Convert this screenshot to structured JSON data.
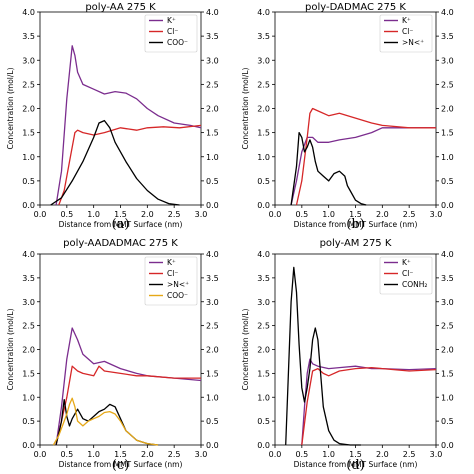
{
  "chart_data": [
    {
      "type": "line",
      "title": "poly-AA 275 K",
      "caption": "(a)",
      "xlabel": "Distance from MMT Surface (nm)",
      "ylabel": "Concentration (mol/L)",
      "xlim": [
        0.0,
        3.0
      ],
      "ylim": [
        0.0,
        4.0
      ],
      "x_ticks": [
        "0.0",
        "0.5",
        "1.0",
        "1.5",
        "2.0",
        "2.5",
        "3.0"
      ],
      "y_ticks": [
        "0.0",
        "0.5",
        "1.0",
        "1.5",
        "2.0",
        "2.5",
        "3.0",
        "3.5",
        "4.0"
      ],
      "legend_position": "top-right",
      "series": [
        {
          "name": "K⁺",
          "color": "#7b2d8e",
          "x": [
            0.3,
            0.4,
            0.5,
            0.6,
            0.65,
            0.7,
            0.8,
            1.0,
            1.2,
            1.4,
            1.6,
            1.8,
            2.0,
            2.2,
            2.5,
            2.8,
            3.0
          ],
          "y": [
            0.0,
            0.7,
            2.2,
            3.3,
            3.1,
            2.75,
            2.5,
            2.4,
            2.3,
            2.35,
            2.32,
            2.2,
            2.0,
            1.85,
            1.7,
            1.65,
            1.6
          ]
        },
        {
          "name": "Cl⁻",
          "color": "#d62728",
          "x": [
            0.35,
            0.45,
            0.55,
            0.65,
            0.7,
            0.8,
            1.0,
            1.2,
            1.5,
            1.8,
            2.0,
            2.3,
            2.6,
            3.0
          ],
          "y": [
            0.0,
            0.3,
            0.9,
            1.5,
            1.55,
            1.5,
            1.45,
            1.5,
            1.6,
            1.55,
            1.6,
            1.62,
            1.6,
            1.65
          ]
        },
        {
          "name": "COO⁻",
          "color": "#000000",
          "x": [
            0.2,
            0.4,
            0.6,
            0.8,
            1.0,
            1.1,
            1.2,
            1.3,
            1.4,
            1.6,
            1.8,
            2.0,
            2.2,
            2.4,
            2.6
          ],
          "y": [
            0.0,
            0.15,
            0.5,
            0.9,
            1.4,
            1.7,
            1.75,
            1.6,
            1.3,
            0.9,
            0.55,
            0.3,
            0.12,
            0.03,
            0.0
          ]
        }
      ]
    },
    {
      "type": "line",
      "title": "poly-DADMAC 275 K",
      "caption": "(b)",
      "xlabel": "Distance from MMT Surface (nm)",
      "ylabel": "Concentration (mol/L)",
      "xlim": [
        0.0,
        3.0
      ],
      "ylim": [
        0.0,
        4.0
      ],
      "x_ticks": [
        "0.0",
        "0.5",
        "1.0",
        "1.5",
        "2.0",
        "2.5",
        "3.0"
      ],
      "y_ticks": [
        "0.0",
        "0.5",
        "1.0",
        "1.5",
        "2.0",
        "2.5",
        "3.0",
        "3.5",
        "4.0"
      ],
      "legend_position": "top-right",
      "series": [
        {
          "name": "K⁺",
          "color": "#7b2d8e",
          "x": [
            0.3,
            0.4,
            0.5,
            0.6,
            0.7,
            0.8,
            1.0,
            1.2,
            1.5,
            1.8,
            2.0,
            2.5,
            3.0
          ],
          "y": [
            0.0,
            0.5,
            1.1,
            1.4,
            1.4,
            1.3,
            1.3,
            1.35,
            1.4,
            1.5,
            1.6,
            1.6,
            1.6
          ]
        },
        {
          "name": "Cl⁻",
          "color": "#d62728",
          "x": [
            0.4,
            0.5,
            0.6,
            0.65,
            0.7,
            0.8,
            1.0,
            1.2,
            1.5,
            1.8,
            2.0,
            2.5,
            3.0
          ],
          "y": [
            0.0,
            0.5,
            1.4,
            1.9,
            2.0,
            1.95,
            1.85,
            1.9,
            1.8,
            1.7,
            1.65,
            1.6,
            1.6
          ]
        },
        {
          "name": ">N<⁺",
          "color": "#000000",
          "x": [
            0.3,
            0.4,
            0.45,
            0.5,
            0.55,
            0.6,
            0.65,
            0.7,
            0.75,
            0.8,
            0.9,
            1.0,
            1.1,
            1.2,
            1.3,
            1.35,
            1.4,
            1.5,
            1.6,
            1.7
          ],
          "y": [
            0.0,
            0.8,
            1.5,
            1.4,
            1.1,
            1.2,
            1.35,
            1.2,
            0.9,
            0.7,
            0.6,
            0.5,
            0.65,
            0.7,
            0.6,
            0.4,
            0.3,
            0.1,
            0.03,
            0.0
          ]
        }
      ]
    },
    {
      "type": "line",
      "title": "poly-AADADMAC 275 K",
      "caption": "(c)",
      "xlabel": "Distance from MMT Surface (nm)",
      "ylabel": "Concentration (mol/L)",
      "xlim": [
        0.0,
        3.0
      ],
      "ylim": [
        0.0,
        4.0
      ],
      "x_ticks": [
        "0.0",
        "0.5",
        "1.0",
        "1.5",
        "2.0",
        "2.5",
        "3.0"
      ],
      "y_ticks": [
        "0.0",
        "0.5",
        "1.0",
        "1.5",
        "2.0",
        "2.5",
        "3.0",
        "3.5",
        "4.0"
      ],
      "legend_position": "top-right",
      "series": [
        {
          "name": "K⁺",
          "color": "#7b2d8e",
          "x": [
            0.3,
            0.4,
            0.5,
            0.6,
            0.7,
            0.8,
            1.0,
            1.2,
            1.5,
            1.8,
            2.0,
            2.5,
            3.0
          ],
          "y": [
            0.0,
            0.8,
            1.8,
            2.45,
            2.2,
            1.9,
            1.7,
            1.75,
            1.6,
            1.5,
            1.45,
            1.4,
            1.35
          ]
        },
        {
          "name": "Cl⁻",
          "color": "#d62728",
          "x": [
            0.3,
            0.4,
            0.5,
            0.6,
            0.7,
            0.8,
            1.0,
            1.1,
            1.2,
            1.5,
            1.8,
            2.0,
            2.5,
            3.0
          ],
          "y": [
            0.0,
            0.5,
            1.0,
            1.65,
            1.55,
            1.5,
            1.45,
            1.65,
            1.55,
            1.5,
            1.45,
            1.45,
            1.4,
            1.4
          ]
        },
        {
          "name": ">N<⁺",
          "color": "#000000",
          "x": [
            0.3,
            0.4,
            0.45,
            0.5,
            0.55,
            0.6,
            0.7,
            0.8,
            0.9,
            1.0,
            1.1,
            1.2,
            1.3,
            1.4,
            1.5,
            1.6,
            1.8,
            2.0,
            2.2
          ],
          "y": [
            0.0,
            0.5,
            0.95,
            0.6,
            0.4,
            0.55,
            0.75,
            0.55,
            0.5,
            0.6,
            0.7,
            0.75,
            0.85,
            0.8,
            0.55,
            0.3,
            0.1,
            0.03,
            0.0
          ]
        },
        {
          "name": "COO⁻",
          "color": "#e6a817",
          "x": [
            0.25,
            0.35,
            0.45,
            0.5,
            0.55,
            0.6,
            0.65,
            0.7,
            0.8,
            0.9,
            1.0,
            1.1,
            1.2,
            1.3,
            1.4,
            1.5,
            1.6,
            1.8,
            2.0,
            2.2
          ],
          "y": [
            0.0,
            0.2,
            0.5,
            0.65,
            0.85,
            0.98,
            0.8,
            0.5,
            0.4,
            0.5,
            0.55,
            0.6,
            0.68,
            0.7,
            0.65,
            0.5,
            0.3,
            0.1,
            0.03,
            0.0
          ]
        }
      ]
    },
    {
      "type": "line",
      "title": "poly-AM 275 K",
      "caption": "(d)",
      "xlabel": "Distance from MMT Surface (nm)",
      "ylabel": "Concentration (mol/L)",
      "xlim": [
        0.0,
        3.0
      ],
      "ylim": [
        0.0,
        4.0
      ],
      "x_ticks": [
        "0.0",
        "0.5",
        "1.0",
        "1.5",
        "2.0",
        "2.5",
        "3.0"
      ],
      "y_ticks": [
        "0.0",
        "0.5",
        "1.0",
        "1.5",
        "2.0",
        "2.5",
        "3.0",
        "3.5",
        "4.0"
      ],
      "legend_position": "top-right",
      "series": [
        {
          "name": "K⁺",
          "color": "#7b2d8e",
          "x": [
            0.5,
            0.55,
            0.6,
            0.65,
            0.7,
            0.8,
            1.0,
            1.2,
            1.5,
            1.8,
            2.0,
            2.5,
            3.0
          ],
          "y": [
            0.0,
            0.8,
            1.5,
            1.8,
            1.7,
            1.65,
            1.6,
            1.62,
            1.65,
            1.6,
            1.6,
            1.58,
            1.6
          ]
        },
        {
          "name": "Cl⁻",
          "color": "#d62728",
          "x": [
            0.5,
            0.6,
            0.7,
            0.8,
            0.9,
            1.0,
            1.2,
            1.5,
            1.8,
            2.0,
            2.5,
            3.0
          ],
          "y": [
            0.0,
            0.9,
            1.55,
            1.6,
            1.5,
            1.45,
            1.55,
            1.6,
            1.62,
            1.6,
            1.55,
            1.58
          ]
        },
        {
          "name": "CONH₂",
          "color": "#000000",
          "x": [
            0.2,
            0.25,
            0.3,
            0.35,
            0.4,
            0.45,
            0.5,
            0.55,
            0.6,
            0.65,
            0.7,
            0.75,
            0.8,
            0.85,
            0.9,
            1.0,
            1.1,
            1.2,
            1.4,
            1.6
          ],
          "y": [
            0.0,
            1.5,
            3.0,
            3.72,
            3.2,
            2.1,
            1.2,
            0.9,
            1.2,
            1.6,
            2.2,
            2.45,
            2.2,
            1.5,
            0.8,
            0.3,
            0.1,
            0.03,
            0.0,
            0.0
          ]
        }
      ]
    }
  ]
}
